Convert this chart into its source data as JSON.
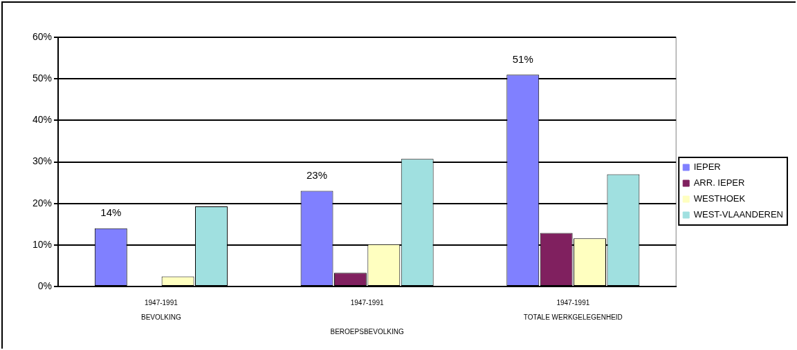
{
  "chart_data": {
    "type": "bar",
    "categories": [
      "1947-1991\nBEVOLKING",
      "1947-1991\nBEROEPSBEVOLKING",
      "1947-1991\nTOTALE WERKGELEGENHEID"
    ],
    "series": [
      {
        "name": "IEPER",
        "color": "#8080ff",
        "values": [
          14,
          23,
          51
        ],
        "value_labels": [
          "14%",
          "23%",
          "51%"
        ]
      },
      {
        "name": "ARR. IEPER",
        "color": "#80205f",
        "values": [
          0,
          3.3,
          12.9
        ]
      },
      {
        "name": "WESTHOEK",
        "color": "#ffffc0",
        "values": [
          2.4,
          10.2,
          11.6
        ]
      },
      {
        "name": "WEST-VLAANDEREN",
        "color": "#a0e0e0",
        "values": [
          19.3,
          30.7,
          27
        ]
      }
    ],
    "ylim": [
      0,
      60
    ],
    "yticks": [
      {
        "value": 0,
        "label": "0%"
      },
      {
        "value": 10,
        "label": "10%"
      },
      {
        "value": 20,
        "label": "20%"
      },
      {
        "value": 30,
        "label": "30%"
      },
      {
        "value": 40,
        "label": "40%"
      },
      {
        "value": 50,
        "label": "50%"
      },
      {
        "value": 60,
        "label": "60%"
      }
    ],
    "grid": "y",
    "legend": "right"
  }
}
